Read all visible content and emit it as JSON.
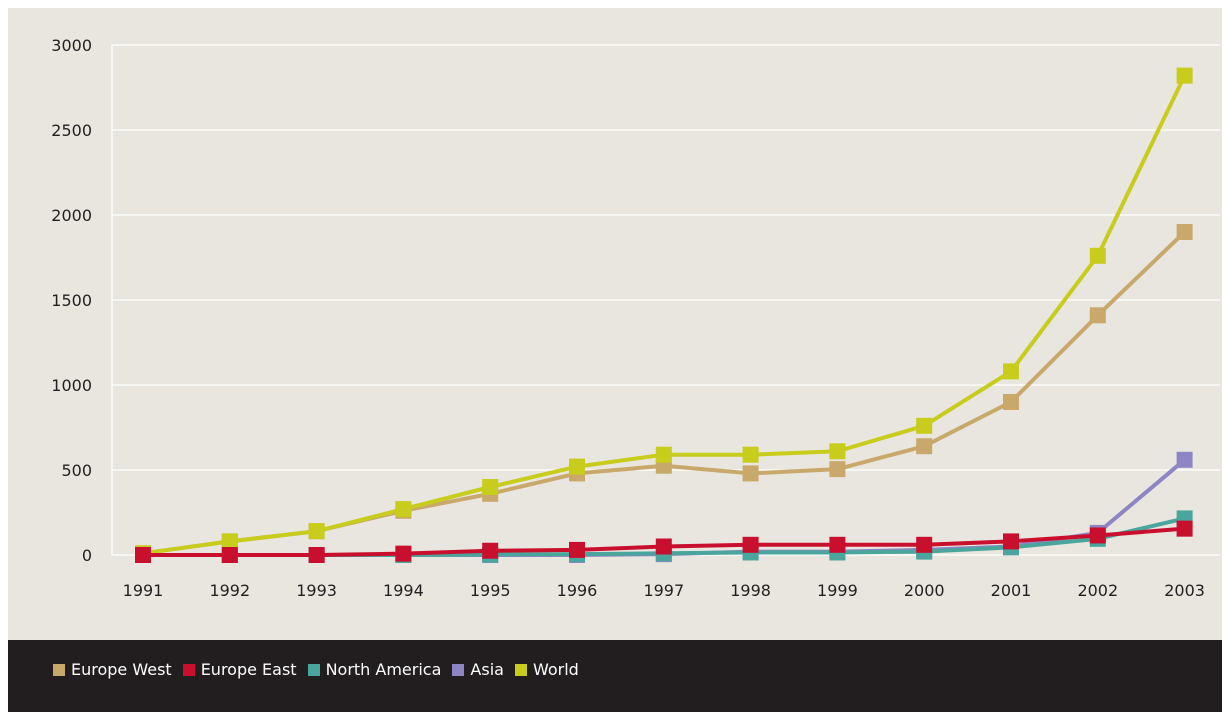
{
  "chart_data": {
    "type": "line",
    "title": "",
    "xlabel": "",
    "ylabel": "",
    "x": [
      "1991",
      "1992",
      "1993",
      "1994",
      "1995",
      "1996",
      "1997",
      "1998",
      "1999",
      "2000",
      "2001",
      "2002",
      "2003"
    ],
    "ylim": [
      0,
      3000
    ],
    "yticks": [
      0,
      500,
      1000,
      1500,
      2000,
      2500,
      3000
    ],
    "grid": true,
    "legend_position": "bottom",
    "series": [
      {
        "name": "Europe West",
        "color": "#c9a86c",
        "values": [
          10,
          80,
          140,
          260,
          360,
          480,
          525,
          480,
          505,
          640,
          900,
          1410,
          1900
        ]
      },
      {
        "name": "Europe East",
        "color": "#c8102e",
        "values": [
          0,
          0,
          0,
          8,
          25,
          30,
          50,
          60,
          60,
          60,
          80,
          115,
          155
        ]
      },
      {
        "name": "North America",
        "color": "#4aa59c",
        "values": [
          0,
          0,
          0,
          0,
          3,
          5,
          10,
          15,
          15,
          20,
          45,
          95,
          215
        ]
      },
      {
        "name": "Asia",
        "color": "#8e85c4",
        "values": [
          0,
          0,
          0,
          0,
          0,
          0,
          5,
          20,
          20,
          30,
          50,
          130,
          560
        ]
      },
      {
        "name": "World",
        "color": "#c8cc1c",
        "values": [
          10,
          80,
          140,
          270,
          400,
          520,
          590,
          590,
          610,
          760,
          1080,
          1760,
          2820
        ]
      }
    ]
  }
}
